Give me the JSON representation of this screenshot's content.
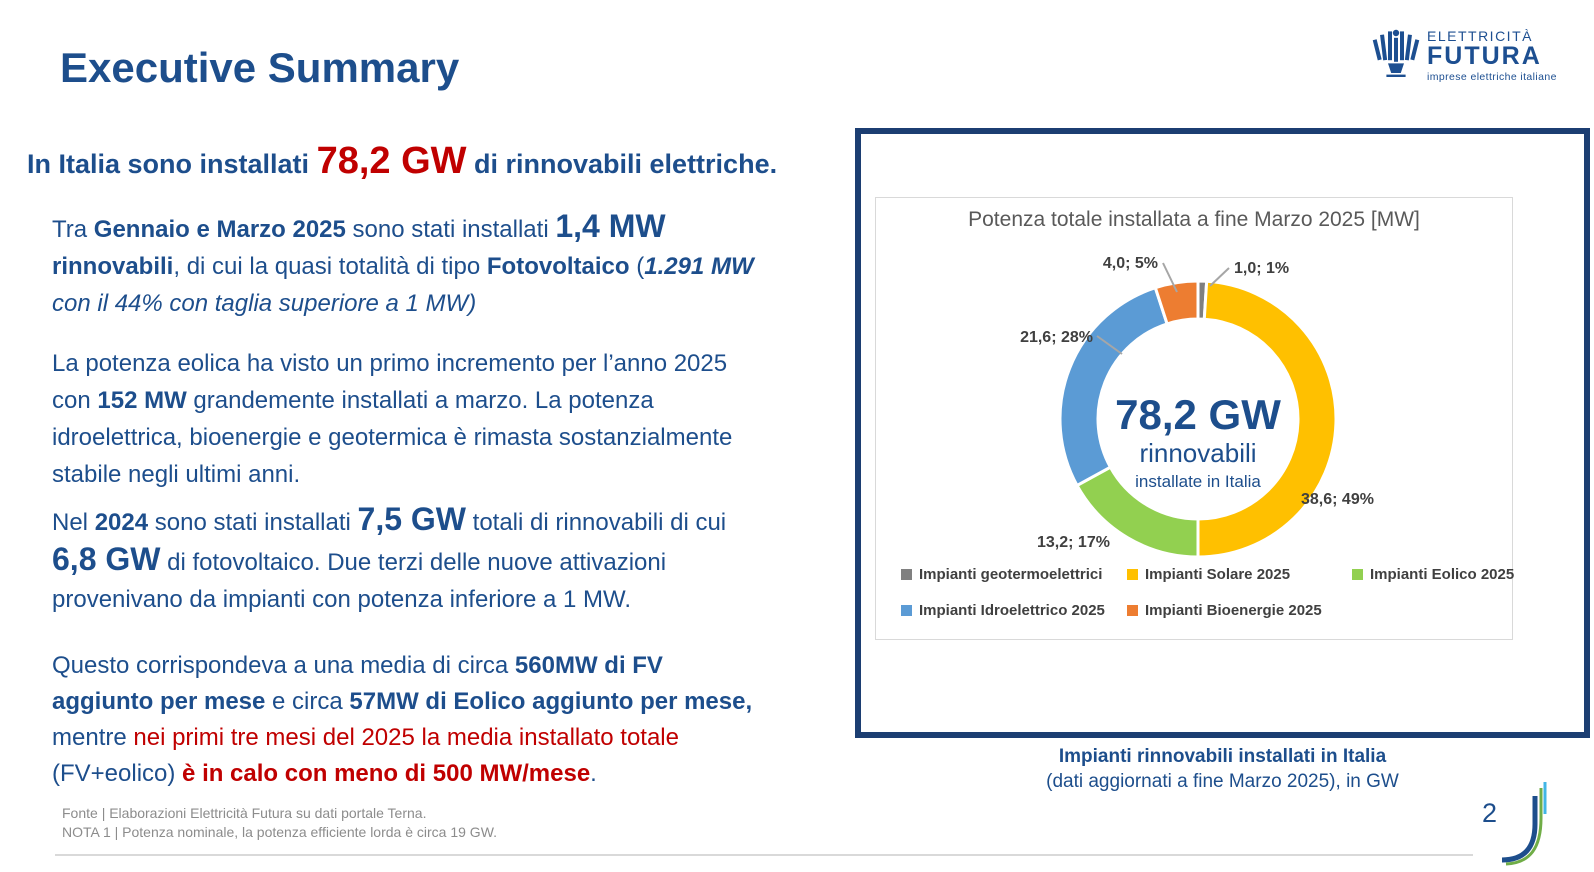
{
  "slide": {
    "title": "Executive Summary",
    "page_number": "2",
    "intro_runs": [
      {
        "t": "In Italia sono installati ",
        "c": ""
      },
      {
        "t": "78,2 GW",
        "c": "hl"
      },
      {
        "t": " di rinnovabili elettriche.",
        "c": ""
      }
    ],
    "paragraphs": [
      {
        "runs": [
          {
            "t": "Tra ",
            "c": ""
          },
          {
            "t": "Gennaio e Marzo 2025",
            "c": "b"
          },
          {
            "t": " sono stati installati ",
            "c": ""
          },
          {
            "t": "1,4 MW",
            "c": "big"
          },
          {
            "t": "\n",
            "c": ""
          },
          {
            "t": "rinnovabili",
            "c": "b"
          },
          {
            "t": ", di cui la quasi totalità di tipo ",
            "c": ""
          },
          {
            "t": "Fotovoltaico",
            "c": "b"
          },
          {
            "t": " (",
            "c": ""
          },
          {
            "t": "1.291 MW",
            "c": "bi"
          },
          {
            "t": "\n",
            "c": ""
          },
          {
            "t": "con il 44% con taglia superiore a 1 MW)",
            "c": "i"
          }
        ]
      },
      {
        "runs": [
          {
            "t": "La potenza eolica ha visto un primo incremento per l’anno 2025\ncon ",
            "c": ""
          },
          {
            "t": "152 MW",
            "c": "b"
          },
          {
            "t": " grandemente installati a marzo. La potenza\nidroelettrica, bioenergie e geotermica è rimasta sostanzialmente\nstabile negli ultimi anni.",
            "c": ""
          }
        ]
      },
      {
        "runs": [
          {
            "t": "Nel ",
            "c": ""
          },
          {
            "t": "2024",
            "c": "b"
          },
          {
            "t": " sono stati installati ",
            "c": ""
          },
          {
            "t": "7,5 GW",
            "c": "big"
          },
          {
            "t": " totali di rinnovabili di cui\n",
            "c": ""
          },
          {
            "t": "6,8 GW",
            "c": "big"
          },
          {
            "t": " di fotovoltaico. Due terzi delle nuove attivazioni\nprovenivano da impianti con potenza inferiore a 1 MW.",
            "c": ""
          }
        ]
      },
      {
        "runs": [
          {
            "t": "Questo corrispondeva a una media di circa ",
            "c": ""
          },
          {
            "t": "560MW di FV\naggiunto per mese",
            "c": "b"
          },
          {
            "t": " e circa ",
            "c": ""
          },
          {
            "t": "57MW di Eolico aggiunto per mese,",
            "c": "b"
          },
          {
            "t": "\nmentre ",
            "c": ""
          },
          {
            "t": "nei primi tre mesi del 2025 la media installato totale",
            "c": "red"
          },
          {
            "t": "\n(FV+eolico) ",
            "c": ""
          },
          {
            "t": "è in calo con meno di 500 MW/mese",
            "c": "redb"
          },
          {
            "t": ".",
            "c": ""
          }
        ]
      }
    ],
    "footnotes": [
      "Fonte | Elaborazioni Elettricità Futura su dati portale Terna.",
      "NOTA 1 | Potenza nominale, la potenza efficiente lorda è circa 19 GW."
    ]
  },
  "logo": {
    "line1": "ELETTRICITÀ",
    "line2": "FUTURA",
    "tagline": "imprese elettriche italiane"
  },
  "chart_panel": {
    "caption_line1": "Impianti rinnovabili installati in Italia",
    "caption_line2": "(dati aggiornati a fine Marzo 2025), in GW"
  },
  "chart_data": {
    "type": "pie",
    "subtype": "donut",
    "title": "Potenza totale installata a fine Marzo 2025 [MW]",
    "unit": "GW",
    "total_label": "78,2 GW",
    "center_value": "78,2 GW",
    "center_label1": "rinnovabili",
    "center_label2": "installate in Italia",
    "start_angle_deg": 0,
    "direction": "clockwise",
    "legend_position": "bottom",
    "slices": [
      {
        "name": "Impianti geotermoelettrici",
        "value": 1.0,
        "percent": 1,
        "label": "1,0; 1%",
        "color": "#808080"
      },
      {
        "name": "Impianti Solare 2025",
        "value": 38.6,
        "percent": 49,
        "label": "38,6; 49%",
        "color": "#FFC000"
      },
      {
        "name": "Impianti Eolico 2025",
        "value": 13.2,
        "percent": 17,
        "label": "13,2; 17%",
        "color": "#92D050"
      },
      {
        "name": "Impianti Idroelettrico 2025",
        "value": 21.6,
        "percent": 28,
        "label": "21,6; 28%",
        "color": "#5B9BD5"
      },
      {
        "name": "Impianti Bioenergie 2025",
        "value": 4.0,
        "percent": 5,
        "label": "4,0; 5%",
        "color": "#ED7D31"
      }
    ]
  },
  "colors": {
    "accent_blue": "#1D4E8C",
    "accent_red": "#C00000",
    "panel_border": "#1C3E72",
    "footnote_gray": "#8C8C8C",
    "chart_title_gray": "#595959"
  }
}
